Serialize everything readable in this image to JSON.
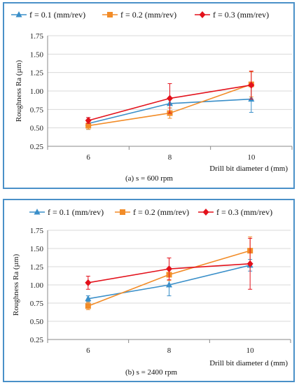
{
  "chart_data": [
    {
      "type": "line",
      "caption": "(a) s = 600 rpm",
      "xlabel": "Drill bit diameter  d (mm)",
      "ylabel": "Roughness Ra (µm)",
      "categories": [
        "6",
        "8",
        "10"
      ],
      "ylim": [
        0.25,
        1.75
      ],
      "yticks": [
        "0.25",
        "0.50",
        "0.75",
        "1.00",
        "1.25",
        "1.50",
        "1.75"
      ],
      "grid": true,
      "legend_position": "top",
      "series": [
        {
          "name": "f = 0.1 (mm/rev)",
          "color": "#3a8fc9",
          "marker": "triangle",
          "values": [
            0.56,
            0.83,
            0.89
          ],
          "errors": [
            0.08,
            0.06,
            0.18
          ]
        },
        {
          "name": "f = 0.2 (mm/rev)",
          "color": "#f28c28",
          "marker": "square",
          "values": [
            0.53,
            0.7,
            1.09
          ],
          "errors": [
            0.05,
            0.07,
            0.17
          ]
        },
        {
          "name": "f = 0.3 (mm/rev)",
          "color": "#e3111b",
          "marker": "diamond",
          "values": [
            0.6,
            0.9,
            1.08
          ],
          "errors": [
            0.04,
            0.2,
            0.19
          ]
        }
      ]
    },
    {
      "type": "line",
      "caption": "(b) s = 2400 rpm",
      "xlabel": "Drill  bit diameter  d (mm)",
      "ylabel": "Roughness Ra (µm)",
      "categories": [
        "6",
        "8",
        "10"
      ],
      "ylim": [
        0.25,
        1.75
      ],
      "yticks": [
        "0.25",
        "0.50",
        "0.75",
        "1.00",
        "1.25",
        "1.50",
        "1.75"
      ],
      "grid": true,
      "legend_position": "top",
      "series": [
        {
          "name": "f = 0.1 (mm/rev)",
          "color": "#3a8fc9",
          "marker": "triangle",
          "values": [
            0.81,
            1.0,
            1.27
          ],
          "errors": [
            0.04,
            0.15,
            0.08
          ]
        },
        {
          "name": "f = 0.2 (mm/rev)",
          "color": "#f28c28",
          "marker": "square",
          "values": [
            0.71,
            1.14,
            1.47
          ],
          "errors": [
            0.05,
            0.08,
            0.19
          ]
        },
        {
          "name": "f = 0.3 (mm/rev)",
          "color": "#e3111b",
          "marker": "diamond",
          "values": [
            1.03,
            1.22,
            1.29
          ],
          "errors": [
            0.09,
            0.15,
            0.35
          ]
        }
      ]
    }
  ]
}
